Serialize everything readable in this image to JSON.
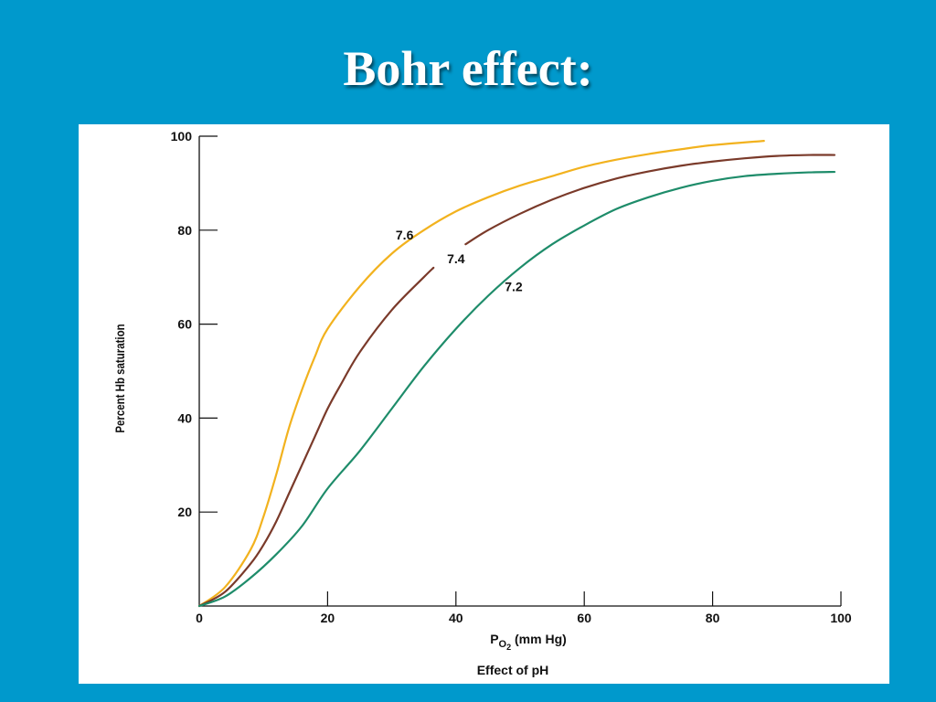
{
  "slide": {
    "title": "Bohr effect:"
  },
  "chart_data": {
    "type": "line",
    "title": "",
    "subtitle": "Effect of pH",
    "xlabel_main": "P",
    "xlabel_sub": "O",
    "xlabel_sub2": "2",
    "xlabel_rest": " (mm Hg)",
    "ylabel": "Percent Hb saturation",
    "xlim": [
      0,
      100
    ],
    "ylim": [
      0,
      100
    ],
    "x_ticks": [
      0,
      20,
      40,
      60,
      80,
      100
    ],
    "y_ticks": [
      20,
      40,
      60,
      80,
      100
    ],
    "grid": false,
    "series": [
      {
        "name": "7.6",
        "color": "#F2B21E",
        "label_at": [
          32,
          78
        ],
        "points": [
          [
            0,
            0
          ],
          [
            4,
            4
          ],
          [
            8,
            12
          ],
          [
            10,
            19
          ],
          [
            12,
            28
          ],
          [
            14,
            38
          ],
          [
            16,
            46
          ],
          [
            18,
            53
          ],
          [
            20,
            59
          ],
          [
            25,
            68
          ],
          [
            30,
            75
          ],
          [
            35,
            80
          ],
          [
            40,
            84
          ],
          [
            45,
            87
          ],
          [
            50,
            89.5
          ],
          [
            55,
            91.5
          ],
          [
            60,
            93.5
          ],
          [
            65,
            95
          ],
          [
            70,
            96.2
          ],
          [
            75,
            97.2
          ],
          [
            80,
            98.1
          ],
          [
            88,
            99
          ]
        ]
      },
      {
        "name": "7.4",
        "color": "#7A3A2A",
        "label_at": [
          40,
          73
        ],
        "gap": [
          36.5,
          41.5
        ],
        "points": [
          [
            0,
            0
          ],
          [
            4,
            3
          ],
          [
            8,
            9
          ],
          [
            10,
            13
          ],
          [
            12,
            18
          ],
          [
            14,
            24
          ],
          [
            16,
            30
          ],
          [
            18,
            36
          ],
          [
            20,
            42
          ],
          [
            22,
            47
          ],
          [
            25,
            54
          ],
          [
            30,
            63
          ],
          [
            35,
            70
          ],
          [
            36.5,
            72
          ],
          [
            41.5,
            77
          ],
          [
            45,
            80
          ],
          [
            50,
            83.5
          ],
          [
            55,
            86.5
          ],
          [
            60,
            89
          ],
          [
            65,
            91
          ],
          [
            70,
            92.5
          ],
          [
            75,
            93.7
          ],
          [
            80,
            94.6
          ],
          [
            85,
            95.3
          ],
          [
            90,
            95.8
          ],
          [
            95,
            96
          ],
          [
            99,
            96
          ]
        ]
      },
      {
        "name": "7.2",
        "color": "#1E8C6A",
        "label_at": [
          49,
          67
        ],
        "points": [
          [
            0,
            0
          ],
          [
            4,
            2
          ],
          [
            8,
            6
          ],
          [
            12,
            11
          ],
          [
            16,
            17
          ],
          [
            20,
            25
          ],
          [
            25,
            33
          ],
          [
            30,
            42
          ],
          [
            35,
            51
          ],
          [
            40,
            59
          ],
          [
            45,
            66
          ],
          [
            50,
            72
          ],
          [
            55,
            77
          ],
          [
            60,
            81
          ],
          [
            65,
            84.5
          ],
          [
            70,
            87
          ],
          [
            75,
            89
          ],
          [
            80,
            90.5
          ],
          [
            85,
            91.5
          ],
          [
            90,
            92
          ],
          [
            95,
            92.3
          ],
          [
            99,
            92.4
          ]
        ]
      }
    ]
  }
}
